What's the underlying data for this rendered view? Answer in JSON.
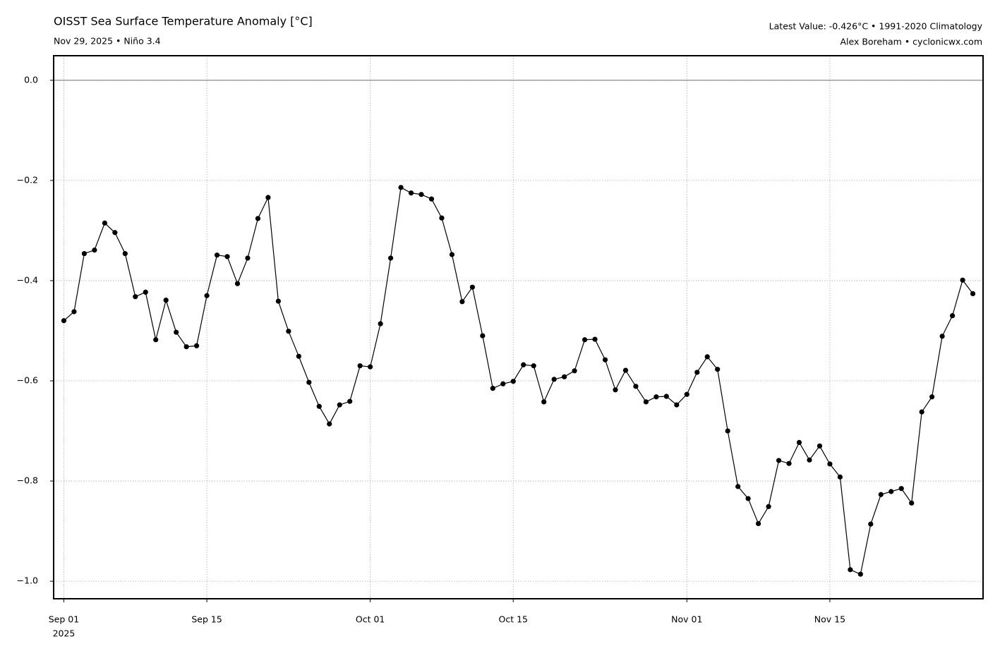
{
  "chart_data": {
    "type": "line",
    "title": "OISST Sea Surface Temperature Anomaly [°C]",
    "subtitle": "Nov 29, 2025 • Niño 3.4",
    "notes": [
      "Latest Value: -0.426°C • 1991-2020 Climatology",
      "Alex Boreham • cyclonicwx.com"
    ],
    "x": [
      "2025-09-01",
      "2025-09-02",
      "2025-09-03",
      "2025-09-04",
      "2025-09-05",
      "2025-09-06",
      "2025-09-07",
      "2025-09-08",
      "2025-09-09",
      "2025-09-10",
      "2025-09-11",
      "2025-09-12",
      "2025-09-13",
      "2025-09-14",
      "2025-09-15",
      "2025-09-16",
      "2025-09-17",
      "2025-09-18",
      "2025-09-19",
      "2025-09-20",
      "2025-09-21",
      "2025-09-22",
      "2025-09-23",
      "2025-09-24",
      "2025-09-25",
      "2025-09-26",
      "2025-09-27",
      "2025-09-28",
      "2025-09-29",
      "2025-09-30",
      "2025-10-01",
      "2025-10-02",
      "2025-10-03",
      "2025-10-04",
      "2025-10-05",
      "2025-10-06",
      "2025-10-07",
      "2025-10-08",
      "2025-10-09",
      "2025-10-10",
      "2025-10-11",
      "2025-10-12",
      "2025-10-13",
      "2025-10-14",
      "2025-10-15",
      "2025-10-16",
      "2025-10-17",
      "2025-10-18",
      "2025-10-19",
      "2025-10-20",
      "2025-10-21",
      "2025-10-22",
      "2025-10-23",
      "2025-10-24",
      "2025-10-25",
      "2025-10-26",
      "2025-10-27",
      "2025-10-28",
      "2025-10-29",
      "2025-10-30",
      "2025-10-31",
      "2025-11-01",
      "2025-11-02",
      "2025-11-03",
      "2025-11-04",
      "2025-11-05",
      "2025-11-06",
      "2025-11-07",
      "2025-11-08",
      "2025-11-09",
      "2025-11-10",
      "2025-11-11",
      "2025-11-12",
      "2025-11-13",
      "2025-11-14",
      "2025-11-15",
      "2025-11-16",
      "2025-11-17",
      "2025-11-18",
      "2025-11-19",
      "2025-11-20",
      "2025-11-21",
      "2025-11-22",
      "2025-11-23",
      "2025-11-24",
      "2025-11-25",
      "2025-11-26",
      "2025-11-27",
      "2025-11-28",
      "2025-11-29"
    ],
    "series": [
      {
        "color": "#000000",
        "values": [
          -0.48,
          -0.462,
          -0.346,
          -0.339,
          -0.285,
          -0.304,
          -0.346,
          -0.432,
          -0.423,
          -0.518,
          -0.439,
          -0.503,
          -0.532,
          -0.53,
          -0.43,
          -0.349,
          -0.352,
          -0.406,
          -0.355,
          -0.276,
          -0.234,
          -0.441,
          -0.501,
          -0.551,
          -0.603,
          -0.651,
          -0.686,
          -0.648,
          -0.641,
          -0.57,
          -0.572,
          -0.486,
          -0.355,
          -0.214,
          -0.225,
          -0.228,
          -0.237,
          -0.275,
          -0.348,
          -0.442,
          -0.413,
          -0.51,
          -0.615,
          -0.606,
          -0.601,
          -0.568,
          -0.57,
          -0.642,
          -0.597,
          -0.592,
          -0.58,
          -0.518,
          -0.517,
          -0.558,
          -0.618,
          -0.579,
          -0.611,
          -0.642,
          -0.632,
          -0.631,
          -0.648,
          -0.627,
          -0.583,
          -0.552,
          -0.577,
          -0.7,
          -0.811,
          -0.835,
          -0.885,
          -0.851,
          -0.759,
          -0.765,
          -0.723,
          -0.758,
          -0.73,
          -0.766,
          -0.792,
          -0.977,
          -0.986,
          -0.886,
          -0.827,
          -0.821,
          -0.815,
          -0.844,
          -0.662,
          -0.632,
          -0.511,
          -0.47,
          -0.399,
          -0.426
        ]
      }
    ],
    "xlim": [
      "2025-08-31",
      "2025-11-30"
    ],
    "xticks": [
      {
        "value": "2025-09-01",
        "label": "Sep 01"
      },
      {
        "value": "2025-09-15",
        "label": "Sep 15"
      },
      {
        "value": "2025-10-01",
        "label": "Oct 01"
      },
      {
        "value": "2025-10-15",
        "label": "Oct 15"
      },
      {
        "value": "2025-11-01",
        "label": "Nov 01"
      },
      {
        "value": "2025-11-15",
        "label": "Nov 15"
      }
    ],
    "x_offset_label": "2025",
    "ylim": [
      -1.035,
      0.049
    ],
    "yticks": [
      {
        "value": 0,
        "label": "0.0"
      },
      {
        "value": -0.2,
        "label": "−0.2"
      },
      {
        "value": -0.4,
        "label": "−0.4"
      },
      {
        "value": -0.6,
        "label": "−0.6"
      },
      {
        "value": -0.8,
        "label": "−0.8"
      },
      {
        "value": -1.0,
        "label": "−1.0"
      }
    ],
    "reference_line": 0,
    "grid": true
  }
}
